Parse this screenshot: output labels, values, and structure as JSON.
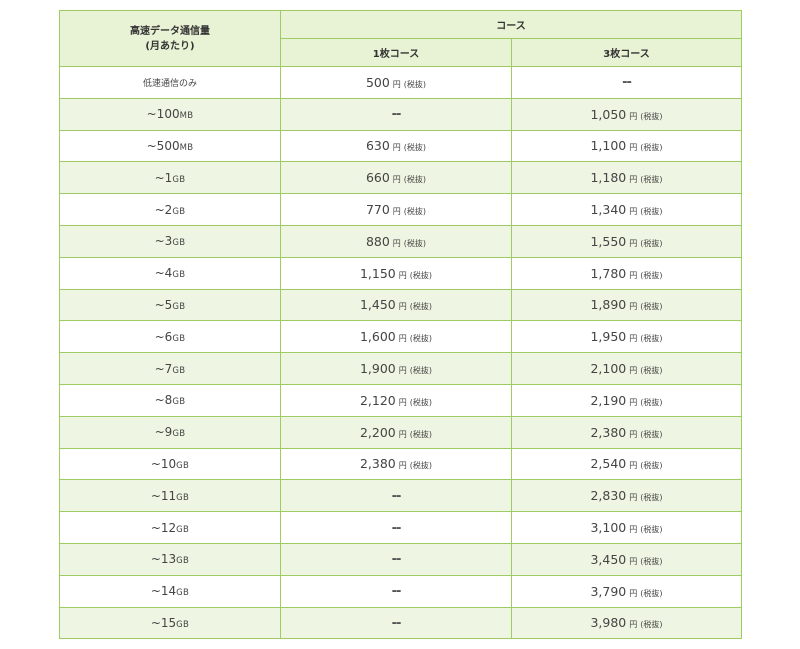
{
  "header": {
    "data_col_line1": "高速データ通信量",
    "data_col_line2": "(月あたり)",
    "course": "コース",
    "course_1": "1枚コース",
    "course_3": "3枚コース"
  },
  "yen": "円",
  "tax": "(税抜)",
  "dash": "--",
  "rows": [
    {
      "prefix": "低速通信のみ",
      "unit": "",
      "c1": "500",
      "c3": "--"
    },
    {
      "prefix": "~100",
      "unit": "MB",
      "c1": "--",
      "c3": "1,050"
    },
    {
      "prefix": "~500",
      "unit": "MB",
      "c1": "630",
      "c3": "1,100"
    },
    {
      "prefix": "~1",
      "unit": "GB",
      "c1": "660",
      "c3": "1,180"
    },
    {
      "prefix": "~2",
      "unit": "GB",
      "c1": "770",
      "c3": "1,340"
    },
    {
      "prefix": "~3",
      "unit": "GB",
      "c1": "880",
      "c3": "1,550"
    },
    {
      "prefix": "~4",
      "unit": "GB",
      "c1": "1,150",
      "c3": "1,780"
    },
    {
      "prefix": "~5",
      "unit": "GB",
      "c1": "1,450",
      "c3": "1,890"
    },
    {
      "prefix": "~6",
      "unit": "GB",
      "c1": "1,600",
      "c3": "1,950"
    },
    {
      "prefix": "~7",
      "unit": "GB",
      "c1": "1,900",
      "c3": "2,100"
    },
    {
      "prefix": "~8",
      "unit": "GB",
      "c1": "2,120",
      "c3": "2,190"
    },
    {
      "prefix": "~9",
      "unit": "GB",
      "c1": "2,200",
      "c3": "2,380"
    },
    {
      "prefix": "~10",
      "unit": "GB",
      "c1": "2,380",
      "c3": "2,540"
    },
    {
      "prefix": "~11",
      "unit": "GB",
      "c1": "--",
      "c3": "2,830"
    },
    {
      "prefix": "~12",
      "unit": "GB",
      "c1": "--",
      "c3": "3,100"
    },
    {
      "prefix": "~13",
      "unit": "GB",
      "c1": "--",
      "c3": "3,450"
    },
    {
      "prefix": "~14",
      "unit": "GB",
      "c1": "--",
      "c3": "3,790"
    },
    {
      "prefix": "~15",
      "unit": "GB",
      "c1": "--",
      "c3": "3,980"
    }
  ]
}
